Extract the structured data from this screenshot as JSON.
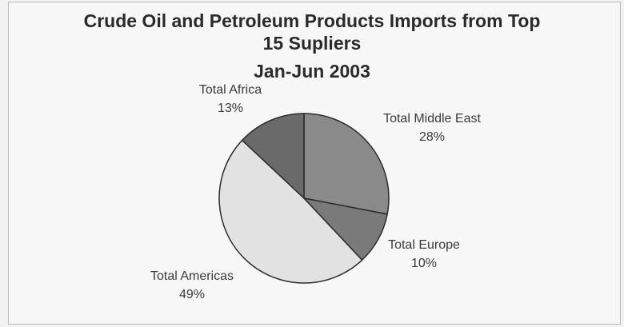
{
  "chart_data": {
    "type": "pie",
    "title": [
      "Crude Oil and Petroleum Products Imports from Top",
      "15 Supliers",
      "Jan-Jun 2003"
    ],
    "slices": [
      {
        "label": "Total Middle East",
        "pct_label": "28%",
        "value": 28,
        "color": "#8a8a8a"
      },
      {
        "label": "Total Europe",
        "pct_label": "10%",
        "value": 10,
        "color": "#7a7a7a"
      },
      {
        "label": "Total Americas",
        "pct_label": "49%",
        "value": 49,
        "color": "#e2e2e2"
      },
      {
        "label": "Total Africa",
        "pct_label": "13%",
        "value": 13,
        "color": "#6a6a6a"
      }
    ]
  }
}
